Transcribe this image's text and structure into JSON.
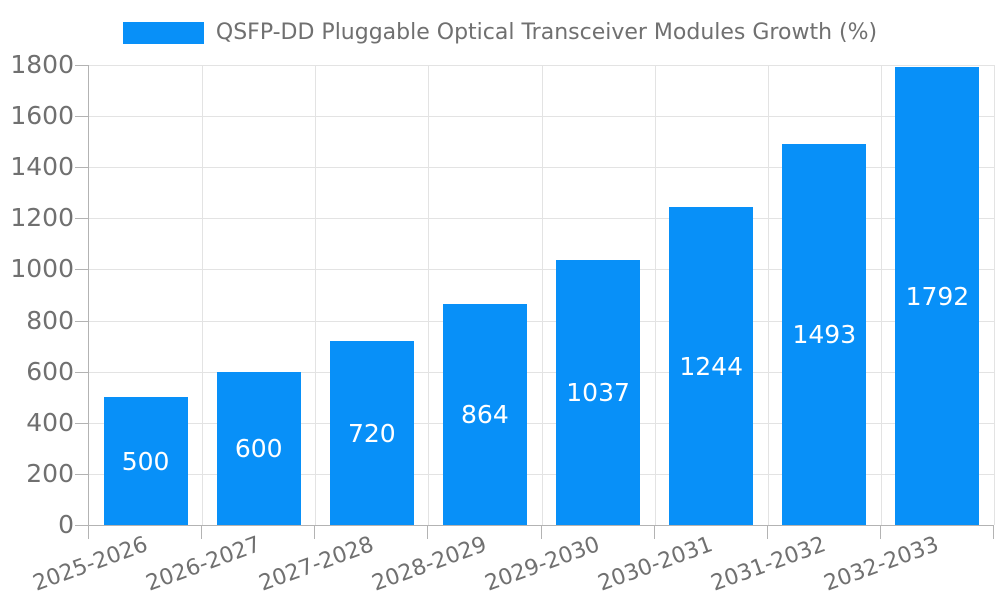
{
  "legend": {
    "label": "QSFP-DD Pluggable Optical Transceiver Modules Growth (%)"
  },
  "chart_data": {
    "type": "bar",
    "title": "QSFP-DD Pluggable Optical Transceiver Modules Growth (%)",
    "categories": [
      "2025-2026",
      "2026-2027",
      "2027-2028",
      "2028-2029",
      "2029-2030",
      "2030-2031",
      "2031-2032",
      "2032-2033"
    ],
    "values": [
      500,
      600,
      720,
      864,
      1037,
      1244,
      1493,
      1792
    ],
    "xlabel": "",
    "ylabel": "",
    "ylim": [
      0,
      1800
    ],
    "ytick_step": 200,
    "grid": true,
    "legend_position": "top",
    "colors": {
      "bar": "#0890f8",
      "value_label": "#ffffff",
      "axis_text": "#707070",
      "gridline": "#e3e3e3",
      "axis_line": "#b3b3b3",
      "background": "#ffffff"
    }
  }
}
